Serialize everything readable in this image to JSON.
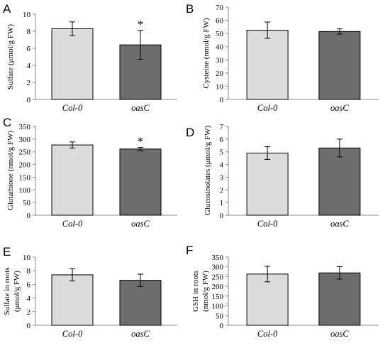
{
  "colors": {
    "col0": "#dcdcdc",
    "oasC": "#6d6d6d",
    "axis": "#8a8a8a",
    "outline": "#000000"
  },
  "chart_data": [
    {
      "type": "bar",
      "panel": "A",
      "categories": [
        "Col-0",
        "oasC"
      ],
      "values": [
        8.3,
        6.4
      ],
      "errors": [
        0.8,
        1.7
      ],
      "ylabel": [
        "Sulfate (μmol/g FW)"
      ],
      "ylim": [
        0,
        10
      ],
      "yticks": [
        0,
        2,
        4,
        6,
        8,
        10
      ],
      "annotations": [
        "",
        "*"
      ]
    },
    {
      "type": "bar",
      "panel": "B",
      "categories": [
        "Col-0",
        "oasC"
      ],
      "values": [
        52.5,
        51.5
      ],
      "errors": [
        6.2,
        2.0
      ],
      "ylabel": [
        "Cysteine (nmol/g FW)"
      ],
      "ylim": [
        0,
        70
      ],
      "yticks": [
        0,
        10,
        20,
        30,
        40,
        50,
        60,
        70
      ],
      "annotations": [
        "",
        ""
      ]
    },
    {
      "type": "bar",
      "panel": "C",
      "categories": [
        "Col-0",
        "oasC"
      ],
      "values": [
        277,
        261
      ],
      "errors": [
        12,
        6
      ],
      "ylabel": [
        "Glutathione (nmol/g FW)"
      ],
      "ylim": [
        0,
        350
      ],
      "yticks": [
        0,
        50,
        100,
        150,
        200,
        250,
        300,
        350
      ],
      "annotations": [
        "",
        "*"
      ]
    },
    {
      "type": "bar",
      "panel": "D",
      "categories": [
        "Col-0",
        "oasC"
      ],
      "values": [
        4.9,
        5.3
      ],
      "errors": [
        0.5,
        0.7
      ],
      "ylabel": [
        "Glucosinolates (μmol/g FW)"
      ],
      "ylim": [
        0,
        7
      ],
      "yticks": [
        0,
        1,
        2,
        3,
        4,
        5,
        6,
        7
      ],
      "annotations": [
        "",
        ""
      ]
    },
    {
      "type": "bar",
      "panel": "E",
      "categories": [
        "Col-0",
        "oasC"
      ],
      "values": [
        7.4,
        6.6
      ],
      "errors": [
        0.9,
        0.9
      ],
      "ylabel": [
        "Sulfate in roots",
        "(μmol/g FW)"
      ],
      "ylim": [
        0,
        10
      ],
      "yticks": [
        0,
        2,
        4,
        6,
        8,
        10
      ],
      "annotations": [
        "",
        ""
      ]
    },
    {
      "type": "bar",
      "panel": "F",
      "categories": [
        "Col-0",
        "oasC"
      ],
      "values": [
        263,
        269
      ],
      "errors": [
        40,
        32
      ],
      "ylabel": [
        "GSH in roots",
        "(nmol/g FW)"
      ],
      "ylim": [
        0,
        350
      ],
      "yticks": [
        0,
        50,
        100,
        150,
        200,
        250,
        300,
        350
      ],
      "annotations": [
        "",
        ""
      ]
    }
  ]
}
